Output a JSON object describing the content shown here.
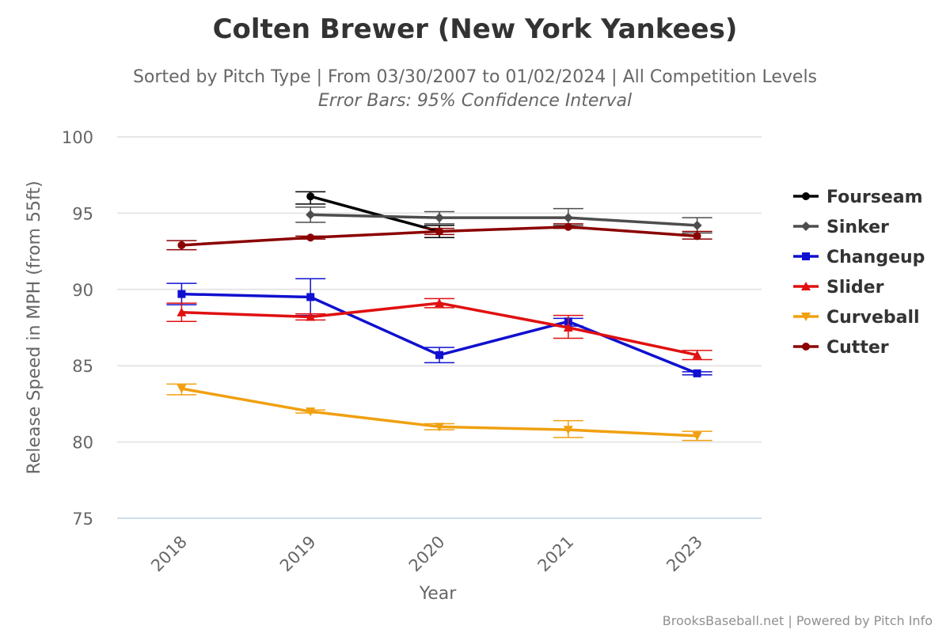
{
  "chart_data": {
    "type": "line",
    "title": "Colten Brewer (New York Yankees)",
    "subtitle": "Sorted by Pitch Type | From 03/30/2007 to 01/02/2024 | All Competition Levels",
    "subtitle2": "Error Bars: 95% Confidence Interval",
    "xlabel": "Year",
    "ylabel": "Release Speed in MPH (from 55ft)",
    "categories": [
      "2018",
      "2019",
      "2020",
      "2021",
      "2023"
    ],
    "ylim": [
      75,
      100
    ],
    "yticks": [
      75,
      80,
      85,
      90,
      95,
      100
    ],
    "grid": true,
    "legend_position": "right",
    "credits": "BrooksBaseball.net | Powered by Pitch Info",
    "series": [
      {
        "name": "Fourseam",
        "color": "#000000",
        "marker": "circle",
        "values": [
          null,
          96.1,
          93.8,
          null,
          null
        ],
        "errors": [
          null,
          [
            95.6,
            96.4
          ],
          [
            93.4,
            94.2
          ],
          null,
          null
        ]
      },
      {
        "name": "Sinker",
        "color": "#4d4d4d",
        "marker": "diamond",
        "values": [
          null,
          94.9,
          94.7,
          94.7,
          94.2
        ],
        "errors": [
          null,
          [
            94.4,
            95.4
          ],
          [
            94.3,
            95.1
          ],
          [
            94.2,
            95.3
          ],
          [
            93.7,
            94.7
          ]
        ]
      },
      {
        "name": "Changeup",
        "color": "#1010d0",
        "marker": "square",
        "values": [
          89.7,
          89.5,
          85.7,
          87.9,
          84.5
        ],
        "errors": [
          [
            89.0,
            90.4
          ],
          [
            88.3,
            90.7
          ],
          [
            85.2,
            86.2
          ],
          [
            87.6,
            88.1
          ],
          [
            84.4,
            84.6
          ]
        ]
      },
      {
        "name": "Slider",
        "color": "#e01010",
        "marker": "triangle",
        "values": [
          88.5,
          88.2,
          89.1,
          87.5,
          85.7
        ],
        "errors": [
          [
            87.9,
            89.1
          ],
          [
            88.0,
            88.4
          ],
          [
            88.8,
            89.4
          ],
          [
            86.8,
            88.3
          ],
          [
            85.4,
            86.0
          ]
        ]
      },
      {
        "name": "Curveball",
        "color": "#f0a010",
        "marker": "triangle-down",
        "values": [
          83.5,
          82.0,
          81.0,
          80.8,
          80.4
        ],
        "errors": [
          [
            83.1,
            83.8
          ],
          [
            81.9,
            82.1
          ],
          [
            80.8,
            81.2
          ],
          [
            80.3,
            81.4
          ],
          [
            80.1,
            80.7
          ]
        ]
      },
      {
        "name": "Cutter",
        "color": "#8b0000",
        "marker": "circle",
        "values": [
          92.9,
          93.4,
          93.8,
          94.1,
          93.5
        ],
        "errors": [
          [
            92.6,
            93.2
          ],
          [
            93.3,
            93.5
          ],
          [
            93.6,
            94.0
          ],
          [
            94.0,
            94.3
          ],
          [
            93.3,
            93.8
          ]
        ]
      }
    ]
  }
}
